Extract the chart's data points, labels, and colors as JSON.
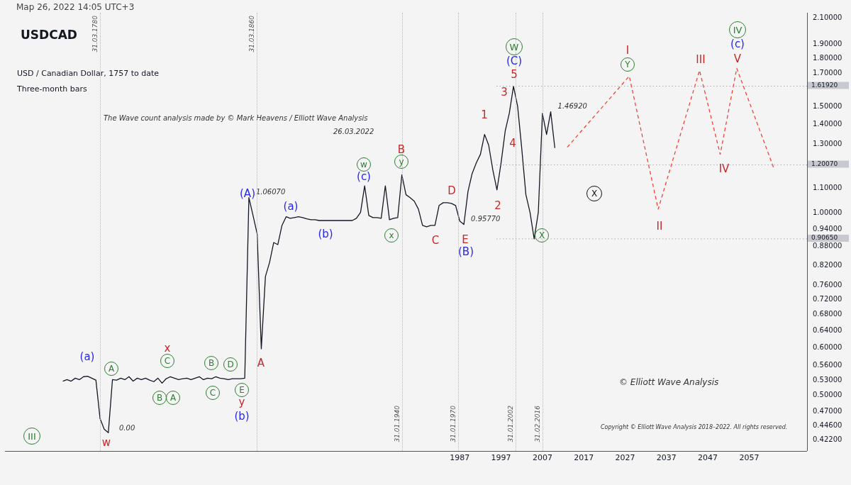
{
  "chart_data": {
    "type": "line",
    "title": "USDCAD",
    "subtitle": "USD / Canadian Dollar, 1757 to date",
    "annotations": [
      "Мар 26, 2022 14:05 UTC+3",
      "Three-month bars",
      "The Wave count analysis made by © Mark Heavens / Elliott Wave Analysis",
      "26.03.2022",
      "© Elliott Wave Analysis",
      "Copyright © Elliott Wave Analysis 2018–2022. All rights reserved.",
      "0.00",
      "31.03.1780",
      "31.03.1860",
      "31.01.1940",
      "31.01.1970",
      "31.01.2002",
      "31.02.2016",
      "(a)",
      "A",
      "x",
      "C",
      "B",
      "A",
      "B",
      "D",
      "C",
      "E",
      "y",
      "(b)",
      "III",
      "w",
      "A",
      "(A)",
      "(a)",
      "(b)",
      "w",
      "(c)",
      "B",
      "y",
      "x",
      "C",
      "D",
      "E",
      "(B)",
      "1",
      "2",
      "3",
      "4",
      "5",
      "(C)",
      "W",
      "X",
      "X",
      "I",
      "Y",
      "III",
      "IV",
      "(c)",
      "V",
      "IV",
      "II"
    ],
    "categories": [
      null,
      null,
      null,
      null,
      null,
      null,
      null,
      null,
      null,
      null,
      null,
      null,
      null,
      null,
      null,
      null,
      null,
      null,
      null,
      null,
      null,
      null,
      null,
      null,
      null,
      null,
      null,
      null,
      null,
      null,
      null,
      null,
      null,
      null,
      null,
      null,
      null,
      null,
      null,
      null,
      null,
      null,
      null,
      null,
      null,
      null,
      null,
      null,
      null,
      null,
      null,
      null,
      null,
      null,
      null,
      null,
      null,
      null,
      null,
      null,
      null,
      null,
      null,
      null,
      null,
      null,
      null,
      null,
      null,
      null,
      null,
      null,
      null,
      null,
      null,
      null,
      null,
      null,
      null,
      null,
      null,
      null,
      null,
      null,
      null,
      null,
      null,
      null,
      null,
      null,
      null,
      null,
      null,
      null,
      null,
      null,
      null,
      null,
      null,
      null,
      null,
      null,
      null,
      null,
      null,
      null,
      null,
      null,
      null,
      null,
      "1987",
      null,
      null,
      null,
      null,
      null,
      null,
      null,
      null,
      null,
      "1997",
      null,
      null,
      null,
      null,
      null,
      null,
      null,
      null,
      null,
      "2007",
      null,
      null,
      null,
      null,
      null,
      null,
      null,
      null,
      null,
      "2017",
      null,
      null,
      null,
      null,
      null,
      null,
      null,
      null,
      null,
      "2027",
      null,
      null,
      null,
      null,
      null,
      null,
      null,
      null,
      null,
      "2037",
      null,
      null,
      null,
      null,
      null,
      null,
      null,
      null,
      null,
      "2047",
      null,
      null,
      null,
      null,
      null,
      null,
      null,
      null,
      null,
      "2057",
      null,
      null,
      null,
      null,
      null,
      null,
      null,
      null,
      null,
      null,
      null,
      null,
      null,
      null
    ],
    "series": [
      {
        "color": "#131722",
        "values": [
          null,
          null,
          null,
          null,
          null,
          null,
          null,
          null,
          null,
          null,
          null,
          null,
          null,
          null,
          0.528,
          0.531,
          0.528,
          0.534,
          0.531,
          0.537,
          0.538,
          0.534,
          0.53,
          0.458,
          0.44,
          0.434,
          0.531,
          0.53,
          0.534,
          0.531,
          0.537,
          0.528,
          0.534,
          0.531,
          0.534,
          0.53,
          0.527,
          0.534,
          0.524,
          0.533,
          0.537,
          0.534,
          0.531,
          0.533,
          0.534,
          0.531,
          0.534,
          0.537,
          0.531,
          0.534,
          0.533,
          0.537,
          0.534,
          0.533,
          0.531,
          0.533,
          0.533,
          0.533,
          0.534,
          1.0607,
          0.991,
          0.924,
          0.597,
          0.786,
          0.829,
          0.894,
          0.887,
          0.954,
          0.986,
          0.98,
          0.983,
          0.986,
          0.983,
          0.978,
          0.975,
          0.975,
          0.972,
          0.972,
          0.972,
          0.972,
          0.972,
          0.972,
          0.972,
          0.972,
          0.972,
          0.98,
          1.002,
          1.109,
          0.991,
          0.983,
          0.983,
          0.98,
          1.109,
          0.975,
          0.98,
          0.983,
          1.156,
          1.072,
          1.06,
          1.046,
          1.015,
          0.954,
          0.949,
          0.954,
          0.954,
          1.029,
          1.04,
          1.04,
          1.037,
          1.029,
          0.97,
          0.9577,
          1.086,
          1.162,
          1.21,
          1.25,
          1.348,
          1.294,
          1.178,
          1.092,
          1.21,
          1.366,
          1.462,
          1.6192,
          1.5,
          1.277,
          1.072,
          1.002,
          0.9065,
          1.002,
          1.46,
          1.348,
          1.4692,
          1.28,
          null,
          null,
          null,
          null,
          null,
          null,
          null,
          null,
          null,
          null,
          null,
          null,
          null,
          null,
          null,
          null,
          null,
          null,
          null,
          null,
          null,
          null,
          null,
          null,
          null,
          null,
          null,
          null,
          null,
          null,
          null,
          null,
          null,
          null,
          null,
          null,
          null,
          null,
          null,
          null,
          null,
          null,
          null,
          null,
          null,
          null,
          null,
          null,
          null,
          null,
          null,
          null,
          null,
          null,
          null,
          null,
          null,
          null,
          null,
          null,
          null
        ],
        "value_labels": [
          null,
          null,
          null,
          null,
          null,
          null,
          null,
          null,
          null,
          null,
          null,
          null,
          null,
          null,
          null,
          null,
          null,
          null,
          null,
          null,
          null,
          null,
          null,
          null,
          null,
          null,
          null,
          null,
          null,
          null,
          null,
          null,
          null,
          null,
          null,
          null,
          null,
          null,
          null,
          null,
          null,
          null,
          null,
          null,
          null,
          null,
          null,
          null,
          null,
          null,
          null,
          null,
          null,
          null,
          null,
          null,
          null,
          null,
          null,
          "1.06070",
          null,
          null,
          null,
          null,
          null,
          null,
          null,
          null,
          null,
          null,
          null,
          null,
          null,
          null,
          null,
          null,
          null,
          null,
          null,
          null,
          null,
          null,
          null,
          null,
          null,
          null,
          null,
          null,
          null,
          null,
          null,
          null,
          null,
          null,
          null,
          null,
          null,
          null,
          null,
          null,
          null,
          null,
          null,
          null,
          null,
          null,
          null,
          null,
          null,
          null,
          null,
          "0.95770",
          null,
          null,
          null,
          null,
          null,
          null,
          null,
          null,
          null,
          null,
          null,
          null,
          null,
          null,
          null,
          null,
          null,
          null,
          null,
          null,
          "1.46920",
          null,
          null,
          null,
          null,
          null,
          null,
          null,
          null,
          null,
          null,
          null,
          null,
          null,
          null,
          null,
          null,
          null,
          null,
          null,
          null,
          null,
          null,
          null,
          null,
          null,
          null,
          null,
          null,
          null,
          null,
          null,
          null,
          null,
          null,
          null,
          null,
          null,
          null,
          null,
          null,
          null,
          null,
          null,
          null,
          null,
          null,
          null,
          null,
          null,
          null,
          null,
          null,
          null,
          null,
          null,
          null,
          null,
          null,
          null,
          null,
          null,
          null
        ]
      },
      {
        "color": "#f44336",
        "line_style": "dashed",
        "values": [
          null,
          null,
          null,
          null,
          null,
          null,
          null,
          null,
          null,
          null,
          null,
          null,
          null,
          null,
          null,
          null,
          null,
          null,
          null,
          null,
          null,
          null,
          null,
          null,
          null,
          null,
          null,
          null,
          null,
          null,
          null,
          null,
          null,
          null,
          null,
          null,
          null,
          null,
          null,
          null,
          null,
          null,
          null,
          null,
          null,
          null,
          null,
          null,
          null,
          null,
          null,
          null,
          null,
          null,
          null,
          null,
          null,
          null,
          null,
          null,
          null,
          null,
          null,
          null,
          null,
          null,
          null,
          null,
          null,
          null,
          null,
          null,
          null,
          null,
          null,
          null,
          null,
          null,
          null,
          null,
          null,
          null,
          null,
          null,
          null,
          null,
          null,
          null,
          null,
          null,
          null,
          null,
          null,
          null,
          null,
          null,
          null,
          null,
          null,
          null,
          null,
          null,
          null,
          null,
          null,
          null,
          null,
          null,
          null,
          null,
          null,
          null,
          null,
          null,
          null,
          null,
          null,
          null,
          null,
          null,
          null,
          null,
          null,
          null,
          null,
          null,
          null,
          null,
          null,
          null,
          null,
          null,
          null,
          null,
          null,
          null,
          1.284,
          null,
          null,
          null,
          null,
          null,
          null,
          null,
          null,
          null,
          null,
          null,
          null,
          null,
          null,
          1.682,
          null,
          null,
          null,
          null,
          null,
          null,
          1.015,
          null,
          null,
          null,
          null,
          null,
          null,
          null,
          null,
          null,
          1.719,
          null,
          null,
          null,
          null,
          1.25,
          null,
          null,
          null,
          1.733,
          null,
          null,
          null,
          null,
          null,
          null,
          null,
          null,
          1.184,
          null,
          null,
          null,
          null,
          null,
          null,
          null,
          null
        ]
      }
    ],
    "log": "y",
    "ylim": [
      0.405,
      2.14
    ],
    "yticks": [
      {
        "value": 2.1,
        "label": "2.10000"
      },
      {
        "value": 1.9,
        "label": "1.90000"
      },
      {
        "value": 1.8,
        "label": "1.80000"
      },
      {
        "value": 1.7,
        "label": "1.70000"
      },
      {
        "value": 1.5,
        "label": "1.50000"
      },
      {
        "value": 1.4,
        "label": "1.40000"
      },
      {
        "value": 1.3,
        "label": "1.30000"
      },
      {
        "value": 1.1,
        "label": "1.10000"
      },
      {
        "value": 1.0,
        "label": "1.00000"
      },
      {
        "value": 0.94,
        "label": "0.94000"
      },
      {
        "value": 0.88,
        "label": "0.88000"
      },
      {
        "value": 0.82,
        "label": "0.82000"
      },
      {
        "value": 0.76,
        "label": "0.76000"
      },
      {
        "value": 0.72,
        "label": "0.72000"
      },
      {
        "value": 0.68,
        "label": "0.68000"
      },
      {
        "value": 0.64,
        "label": "0.64000"
      },
      {
        "value": 0.6,
        "label": "0.60000"
      },
      {
        "value": 0.56,
        "label": "0.56000"
      },
      {
        "value": 0.53,
        "label": "0.53000"
      },
      {
        "value": 0.5,
        "label": "0.50000"
      },
      {
        "value": 0.47,
        "label": "0.47000"
      },
      {
        "value": 0.446,
        "label": "0.44600"
      },
      {
        "value": 0.422,
        "label": "0.42200"
      }
    ],
    "ref_lines": [
      {
        "axis": "y",
        "value": 1.6192,
        "label": "1.61920"
      },
      {
        "axis": "y",
        "value": 1.2007,
        "label": "1.20070"
      },
      {
        "axis": "y",
        "value": 0.9065,
        "label": "0.90650"
      }
    ]
  }
}
